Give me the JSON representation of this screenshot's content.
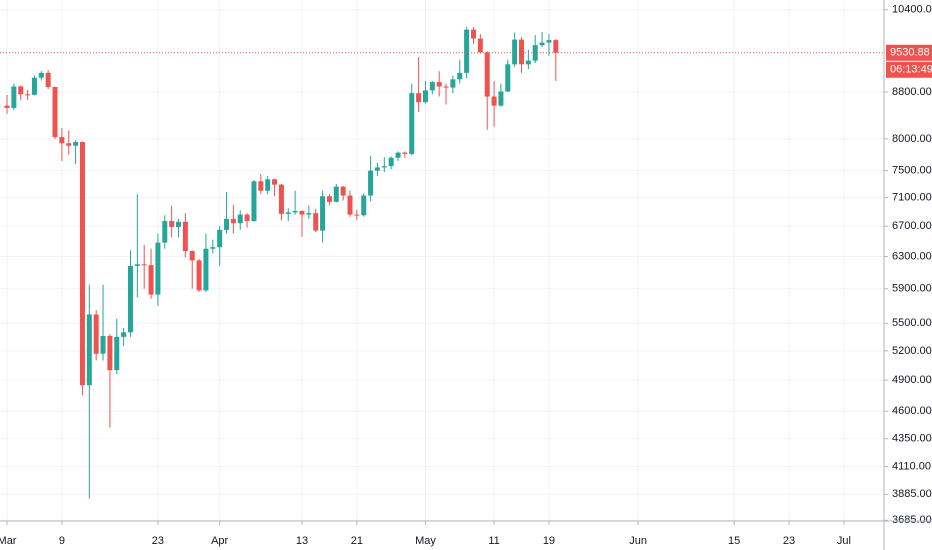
{
  "chart_data": {
    "type": "candlestick",
    "log_scale": true,
    "grid": true,
    "up_color": "#26a69a",
    "down_color": "#ef5350",
    "grid_color": "#f0f3fa",
    "x": [
      "Mar 1",
      "Mar 2",
      "Mar 3",
      "Mar 4",
      "Mar 5",
      "Mar 6",
      "Mar 7",
      "Mar 8",
      "Mar 9",
      "Mar 10",
      "Mar 11",
      "Mar 12",
      "Mar 13",
      "Mar 14",
      "Mar 15",
      "Mar 16",
      "Mar 17",
      "Mar 18",
      "Mar 19",
      "Mar 20",
      "Mar 21",
      "Mar 22",
      "Mar 23",
      "Mar 24",
      "Mar 25",
      "Mar 26",
      "Mar 27",
      "Mar 28",
      "Mar 29",
      "Mar 30",
      "Mar 31",
      "Apr 1",
      "Apr 2",
      "Apr 3",
      "Apr 4",
      "Apr 5",
      "Apr 6",
      "Apr 7",
      "Apr 8",
      "Apr 9",
      "Apr 10",
      "Apr 11",
      "Apr 12",
      "Apr 13",
      "Apr 14",
      "Apr 15",
      "Apr 16",
      "Apr 17",
      "Apr 18",
      "Apr 19",
      "Apr 20",
      "Apr 21",
      "Apr 22",
      "Apr 23",
      "Apr 24",
      "Apr 25",
      "Apr 26",
      "Apr 27",
      "Apr 28",
      "Apr 29",
      "Apr 30",
      "May 1",
      "May 2",
      "May 3",
      "May 4",
      "May 5",
      "May 6",
      "May 7",
      "May 8",
      "May 9",
      "May 10",
      "May 11",
      "May 12",
      "May 13",
      "May 14",
      "May 15",
      "May 16",
      "May 17",
      "May 18",
      "May 19",
      "May 20"
    ],
    "open": [
      8560,
      8520,
      8900,
      8760,
      8750,
      9060,
      9150,
      8890,
      8030,
      7930,
      7890,
      7950,
      4850,
      5600,
      5170,
      5360,
      5000,
      5350,
      5400,
      6180,
      6200,
      6190,
      5830,
      6480,
      6770,
      6690,
      6760,
      6370,
      6250,
      5880,
      6400,
      6420,
      6650,
      6800,
      6740,
      6860,
      6770,
      7340,
      7200,
      7370,
      7290,
      6870,
      6890,
      6910,
      6860,
      6880,
      6640,
      7120,
      7040,
      7260,
      7130,
      6860,
      6850,
      7130,
      7500,
      7550,
      7570,
      7700,
      7780,
      7760,
      8780,
      8620,
      8830,
      8980,
      8900,
      8880,
      9030,
      9150,
      9990,
      9810,
      9540,
      8720,
      8560,
      8810,
      9310,
      9790,
      9310,
      9380,
      9680,
      9730,
      9780
    ],
    "high": [
      8750,
      8950,
      8920,
      8840,
      9100,
      9180,
      9200,
      8900,
      8180,
      8140,
      7980,
      7960,
      5950,
      5650,
      5950,
      5380,
      5550,
      5450,
      6380,
      7150,
      6450,
      6400,
      6600,
      6850,
      6980,
      6800,
      6880,
      6380,
      6270,
      6600,
      6520,
      6700,
      7180,
      7000,
      6920,
      6880,
      7360,
      7450,
      7420,
      7380,
      7300,
      6950,
      7200,
      6920,
      6990,
      6940,
      7200,
      7150,
      7300,
      7270,
      7200,
      6930,
      7160,
      7730,
      7620,
      7710,
      7720,
      7800,
      7800,
      8950,
      9450,
      9000,
      9000,
      9180,
      8950,
      9100,
      9400,
      10050,
      10040,
      9900,
      9560,
      9000,
      8950,
      9400,
      9930,
      9840,
      9590,
      9880,
      9940,
      9900,
      9800
    ],
    "low": [
      8420,
      8480,
      8650,
      8660,
      8740,
      9010,
      8850,
      8000,
      7650,
      7750,
      7600,
      4750,
      3850,
      5100,
      5100,
      4450,
      4960,
      5250,
      5350,
      5800,
      5900,
      5780,
      5700,
      6400,
      6550,
      6550,
      6290,
      5900,
      5860,
      5860,
      6340,
      6180,
      6600,
      6600,
      6650,
      6680,
      6760,
      7150,
      7150,
      7120,
      6780,
      6770,
      6860,
      6560,
      6800,
      6620,
      6480,
      6990,
      7030,
      7060,
      6830,
      6780,
      6830,
      7050,
      7420,
      7480,
      7520,
      7650,
      7700,
      7740,
      8450,
      8600,
      8760,
      8720,
      8580,
      8780,
      8950,
      9050,
      9700,
      9520,
      8150,
      8200,
      8540,
      8800,
      9260,
      9150,
      9220,
      9330,
      9640,
      9470,
      9000
    ],
    "close": [
      8520,
      8900,
      8760,
      8750,
      9060,
      9150,
      8890,
      8030,
      7930,
      7890,
      7950,
      4850,
      5600,
      5170,
      5360,
      5000,
      5350,
      5400,
      6180,
      6200,
      6190,
      5830,
      6480,
      6770,
      6690,
      6760,
      6370,
      6250,
      5880,
      6400,
      6420,
      6650,
      6800,
      6740,
      6860,
      6770,
      7340,
      7200,
      7370,
      7290,
      6870,
      6890,
      6910,
      6860,
      6880,
      6640,
      7120,
      7040,
      7260,
      7130,
      6860,
      6850,
      7130,
      7500,
      7550,
      7570,
      7700,
      7780,
      7760,
      8780,
      8620,
      8830,
      8980,
      8900,
      8880,
      9030,
      9150,
      9990,
      9810,
      9540,
      8720,
      8560,
      8810,
      9310,
      9790,
      9310,
      9380,
      9680,
      9730,
      9780,
      9530.88
    ],
    "ylim": [
      3680,
      10610
    ],
    "yticks": [
      {
        "value": 3685,
        "label": "3685.00"
      },
      {
        "value": 3885,
        "label": "3885.00"
      },
      {
        "value": 4110,
        "label": "4110.00"
      },
      {
        "value": 4350,
        "label": "4350.00"
      },
      {
        "value": 4600,
        "label": "4600.00"
      },
      {
        "value": 4900,
        "label": "4900.00"
      },
      {
        "value": 5200,
        "label": "5200.00"
      },
      {
        "value": 5500,
        "label": "5500.00"
      },
      {
        "value": 5900,
        "label": "5900.00"
      },
      {
        "value": 6300,
        "label": "6300.00"
      },
      {
        "value": 6700,
        "label": "6700.00"
      },
      {
        "value": 7100,
        "label": "7100.00"
      },
      {
        "value": 7500,
        "label": "7500.00"
      },
      {
        "value": 8000,
        "label": "8000.00"
      },
      {
        "value": 8800,
        "label": "8800.00"
      },
      {
        "value": 10400,
        "label": "10400.00"
      }
    ],
    "xticks": [
      {
        "value": "Mar 1",
        "label": "Mar"
      },
      {
        "value": "Mar 9",
        "label": "9"
      },
      {
        "value": "Mar 23",
        "label": "23"
      },
      {
        "value": "Apr 1",
        "label": "Apr"
      },
      {
        "value": "Apr 13",
        "label": "13"
      },
      {
        "value": "Apr 21",
        "label": "21"
      },
      {
        "value": "May 1",
        "label": "May"
      },
      {
        "value": "May 11",
        "label": "11"
      },
      {
        "value": "May 19",
        "label": "19"
      },
      {
        "value": "Jun 1",
        "label": "Jun"
      },
      {
        "value": "Jun 15",
        "label": "15"
      },
      {
        "value": "Jun 23",
        "label": "23"
      },
      {
        "value": "Jul 1",
        "label": "Jul"
      }
    ],
    "last_price": 9530.88,
    "countdown": "06:13:49"
  }
}
